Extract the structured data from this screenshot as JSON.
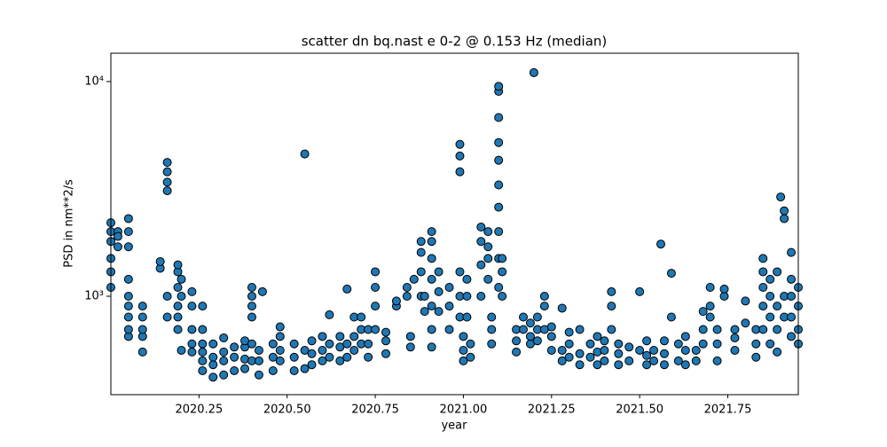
{
  "chart_data": {
    "type": "scatter",
    "title": "scatter dn bq.nast e 0-2 @ 0.153 Hz (median)",
    "x_label": "year",
    "y_label": "PSD in nm**2/s",
    "xlim": [
      2020.0,
      2021.95
    ],
    "ylim": [
      348,
      13550
    ],
    "log_y": true,
    "xticks": [
      2020.25,
      {
        "value": 2020.5,
        "label": "2020.50"
      },
      2020.75,
      {
        "value": 2021.0,
        "label": "2021.00"
      },
      2021.25,
      {
        "value": 2021.5,
        "label": "2021.50"
      },
      2021.75
    ],
    "yticks": [
      {
        "value": 1000,
        "label": "10³"
      },
      {
        "value": 10000,
        "label": "10⁴"
      }
    ],
    "x": [
      2020.0,
      2020.0,
      2020.0,
      2020.0,
      2020.0,
      2020.0,
      2020.02,
      2020.02,
      2020.02,
      2020.05,
      2020.05,
      2020.05,
      2020.05,
      2020.05,
      2020.05,
      2020.05,
      2020.05,
      2020.05,
      2020.09,
      2020.09,
      2020.09,
      2020.09,
      2020.09,
      2020.14,
      2020.14,
      2020.16,
      2020.16,
      2020.16,
      2020.16,
      2020.16,
      2020.16,
      2020.19,
      2020.19,
      2020.19,
      2020.19,
      2020.19,
      2020.19,
      2020.2,
      2020.2,
      2020.2,
      2020.23,
      2020.23,
      2020.23,
      2020.23,
      2020.23,
      2020.26,
      2020.26,
      2020.26,
      2020.26,
      2020.26,
      2020.26,
      2020.29,
      2020.29,
      2020.29,
      2020.29,
      2020.32,
      2020.32,
      2020.32,
      2020.32,
      2020.35,
      2020.35,
      2020.35,
      2020.38,
      2020.38,
      2020.38,
      2020.38,
      2020.4,
      2020.4,
      2020.4,
      2020.4,
      2020.4,
      2020.4,
      2020.42,
      2020.42,
      2020.42,
      2020.43,
      2020.46,
      2020.46,
      2020.46,
      2020.48,
      2020.48,
      2020.48,
      2020.48,
      2020.52,
      2020.52,
      2020.52,
      2020.55,
      2020.55,
      2020.55,
      2020.57,
      2020.57,
      2020.57,
      2020.6,
      2020.6,
      2020.6,
      2020.62,
      2020.62,
      2020.62,
      2020.65,
      2020.65,
      2020.65,
      2020.67,
      2020.67,
      2020.67,
      2020.69,
      2020.69,
      2020.69,
      2020.71,
      2020.71,
      2020.71,
      2020.73,
      2020.73,
      2020.73,
      2020.75,
      2020.75,
      2020.75,
      2020.75,
      2020.78,
      2020.78,
      2020.78,
      2020.81,
      2020.81,
      2020.84,
      2020.84,
      2020.85,
      2020.85,
      2020.86,
      2020.88,
      2020.88,
      2020.88,
      2020.88,
      2020.89,
      2020.89,
      2020.91,
      2020.91,
      2020.91,
      2020.91,
      2020.91,
      2020.91,
      2020.91,
      2020.93,
      2020.93,
      2020.93,
      2020.96,
      2020.96,
      2020.96,
      2020.99,
      2020.99,
      2020.99,
      2020.99,
      2020.99,
      2020.99,
      2021.0,
      2021.0,
      2021.0,
      2021.01,
      2021.01,
      2021.01,
      2021.02,
      2021.02,
      2021.05,
      2021.05,
      2021.05,
      2021.05,
      2021.07,
      2021.07,
      2021.07,
      2021.07,
      2021.08,
      2021.08,
      2021.08,
      2021.1,
      2021.1,
      2021.1,
      2021.1,
      2021.1,
      2021.1,
      2021.1,
      2021.1,
      2021.1,
      2021.1,
      2021.11,
      2021.11,
      2021.11,
      2021.2,
      2021.15,
      2021.15,
      2021.15,
      2021.17,
      2021.17,
      2021.19,
      2021.19,
      2021.19,
      2021.21,
      2021.21,
      2021.21,
      2021.23,
      2021.23,
      2021.23,
      2021.25,
      2021.25,
      2021.25,
      2021.28,
      2021.28,
      2021.28,
      2021.3,
      2021.3,
      2021.3,
      2021.33,
      2021.33,
      2021.33,
      2021.36,
      2021.36,
      2021.38,
      2021.38,
      2021.38,
      2021.4,
      2021.4,
      2021.4,
      2021.42,
      2021.42,
      2021.42,
      2021.44,
      2021.44,
      2021.44,
      2021.47,
      2021.47,
      2021.5,
      2021.5,
      2021.52,
      2021.52,
      2021.52,
      2021.54,
      2021.54,
      2021.56,
      2021.57,
      2021.57,
      2021.57,
      2021.59,
      2021.59,
      2021.61,
      2021.61,
      2021.63,
      2021.63,
      2021.63,
      2021.66,
      2021.66,
      2021.68,
      2021.68,
      2021.68,
      2021.7,
      2021.7,
      2021.7,
      2021.72,
      2021.72,
      2021.72,
      2021.74,
      2021.74,
      2021.77,
      2021.77,
      2021.77,
      2021.8,
      2021.8,
      2021.83,
      2021.83,
      2021.83,
      2021.85,
      2021.85,
      2021.85,
      2021.85,
      2021.85,
      2021.87,
      2021.87,
      2021.87,
      2021.87,
      2021.89,
      2021.89,
      2021.89,
      2021.89,
      2021.9,
      2021.91,
      2021.91,
      2021.91,
      2021.91,
      2021.93,
      2021.93,
      2021.93,
      2021.93,
      2021.93,
      2021.95,
      2021.95,
      2021.95,
      2021.95
    ],
    "series": [
      {
        "color": "#1f77b4",
        "edgecolor": "#000000",
        "values": [
          1100,
          1300,
          1500,
          1800,
          2000,
          2200,
          1700,
          2000,
          1900,
          650,
          700,
          800,
          900,
          1000,
          1200,
          1700,
          2000,
          2300,
          550,
          650,
          700,
          800,
          900,
          1350,
          1450,
          800,
          1000,
          3100,
          3400,
          3800,
          4200,
          700,
          800,
          900,
          1100,
          1300,
          1400,
          560,
          1000,
          1200,
          550,
          600,
          700,
          900,
          1050,
          450,
          500,
          550,
          600,
          700,
          900,
          420,
          480,
          520,
          600,
          430,
          500,
          550,
          640,
          450,
          520,
          580,
          460,
          510,
          580,
          620,
          500,
          600,
          800,
          900,
          1000,
          1100,
          430,
          500,
          560,
          1050,
          450,
          520,
          600,
          500,
          560,
          650,
          720,
          450,
          520,
          600,
          460,
          560,
          4600,
          480,
          540,
          620,
          500,
          560,
          650,
          520,
          600,
          820,
          500,
          580,
          650,
          520,
          600,
          1080,
          560,
          650,
          800,
          600,
          700,
          800,
          520,
          600,
          700,
          700,
          900,
          1100,
          1300,
          540,
          620,
          680,
          900,
          950,
          1000,
          1100,
          580,
          650,
          1200,
          1000,
          1300,
          1600,
          1800,
          850,
          1000,
          580,
          700,
          900,
          1200,
          1500,
          1800,
          2000,
          850,
          1050,
          1300,
          700,
          900,
          1100,
          800,
          1000,
          1300,
          3800,
          4500,
          5100,
          500,
          560,
          650,
          800,
          1000,
          1200,
          520,
          600,
          1000,
          1400,
          1800,
          2100,
          1200,
          1500,
          1700,
          2000,
          600,
          700,
          800,
          1100,
          1500,
          2000,
          2600,
          3300,
          4300,
          5200,
          6800,
          9000,
          9500,
          1000,
          1300,
          1500,
          11000,
          550,
          620,
          700,
          700,
          800,
          600,
          650,
          750,
          620,
          700,
          800,
          700,
          900,
          1000,
          560,
          650,
          720,
          500,
          560,
          880,
          520,
          600,
          680,
          480,
          540,
          700,
          520,
          600,
          480,
          550,
          650,
          500,
          560,
          620,
          700,
          900,
          1050,
          480,
          540,
          600,
          500,
          580,
          1050,
          560,
          480,
          530,
          620,
          500,
          560,
          1750,
          480,
          540,
          620,
          1280,
          800,
          500,
          600,
          480,
          560,
          650,
          500,
          560,
          600,
          700,
          850,
          800,
          900,
          1100,
          500,
          600,
          700,
          1000,
          1080,
          560,
          640,
          700,
          750,
          950,
          520,
          600,
          700,
          700,
          900,
          1100,
          1300,
          1500,
          600,
          800,
          1000,
          1200,
          550,
          700,
          900,
          1300,
          2900,
          800,
          1000,
          2300,
          2500,
          650,
          800,
          1000,
          1200,
          1600,
          600,
          700,
          900,
          1100
        ]
      }
    ]
  }
}
